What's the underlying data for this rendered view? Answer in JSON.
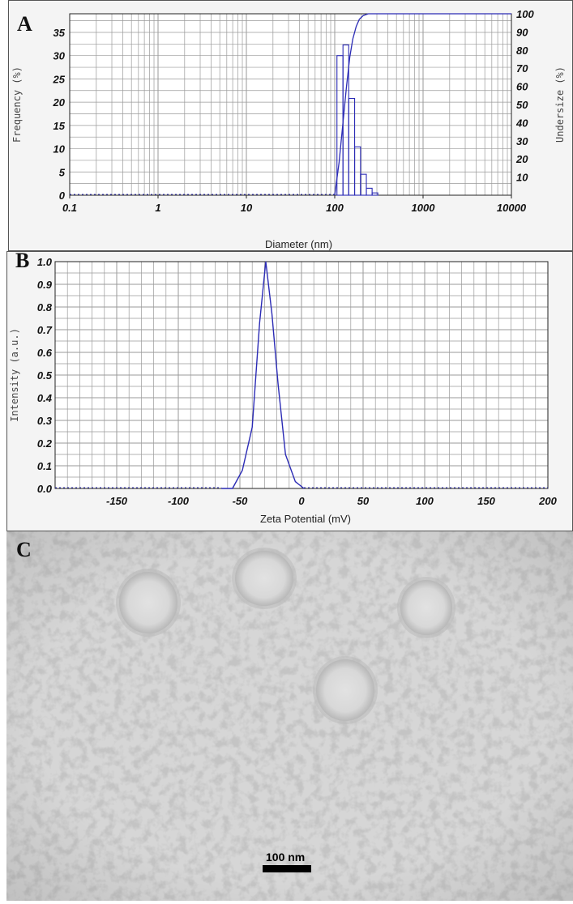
{
  "panels": {
    "a": {
      "letter": "A"
    },
    "b": {
      "letter": "B"
    },
    "c": {
      "letter": "C",
      "scale_bar_label": "100 nm"
    }
  },
  "colors": {
    "series": "#2b2bb5",
    "grid": "#9a9a9a",
    "axis": "#222222",
    "panel_bg": "#f4f4f4"
  },
  "chart_data": [
    {
      "type": "bar",
      "xscale": "log",
      "xlabel": "Diameter (nm)",
      "ylabel": "Frequency (%)",
      "y2label": "Undersize (%)",
      "xlim": [
        0.1,
        10000
      ],
      "ylim": [
        0,
        39
      ],
      "y2lim": [
        0,
        100
      ],
      "xticks": [
        "0.1",
        "1",
        "10",
        "100",
        "1000",
        "10000"
      ],
      "yticks": [
        "0",
        "5",
        "10",
        "15",
        "20",
        "25",
        "30",
        "35"
      ],
      "y2ticks": [
        "10",
        "20",
        "30",
        "40",
        "50",
        "60",
        "70",
        "80",
        "90",
        "100"
      ],
      "grid": true,
      "series": [
        {
          "kind": "histogram",
          "axis": "left",
          "x": [
            106,
            124,
            144,
            168,
            196,
            228,
            265
          ],
          "values": [
            30.0,
            32.3,
            20.8,
            10.4,
            4.5,
            1.5,
            0.5
          ]
        },
        {
          "kind": "cumulative-line",
          "axis": "right",
          "x": [
            100,
            112,
            124,
            136,
            148,
            160,
            175,
            190,
            210,
            240,
            280,
            10000
          ],
          "values": [
            0,
            18,
            40,
            60,
            76,
            86,
            93,
            97,
            99,
            100,
            100,
            100
          ]
        }
      ]
    },
    {
      "type": "line",
      "xlabel": "Zeta Potential (mV)",
      "ylabel": "Intensity (a.u.)",
      "xlim": [
        -200,
        200
      ],
      "ylim": [
        0,
        1.0
      ],
      "xticks": [
        "-150",
        "-100",
        "-50",
        "0",
        "50",
        "100",
        "150",
        "200"
      ],
      "yticks": [
        "0.0",
        "0.1",
        "0.2",
        "0.3",
        "0.4",
        "0.5",
        "0.6",
        "0.7",
        "0.8",
        "0.9",
        "1.0"
      ],
      "grid": true,
      "series": [
        {
          "x": [
            -65,
            -56,
            -48,
            -40,
            -34,
            -29,
            -24,
            -19,
            -13,
            -5,
            2,
            200
          ],
          "values": [
            0.0,
            0.0,
            0.08,
            0.27,
            0.73,
            1.0,
            0.77,
            0.46,
            0.15,
            0.03,
            0.0,
            0.0
          ]
        }
      ]
    }
  ]
}
